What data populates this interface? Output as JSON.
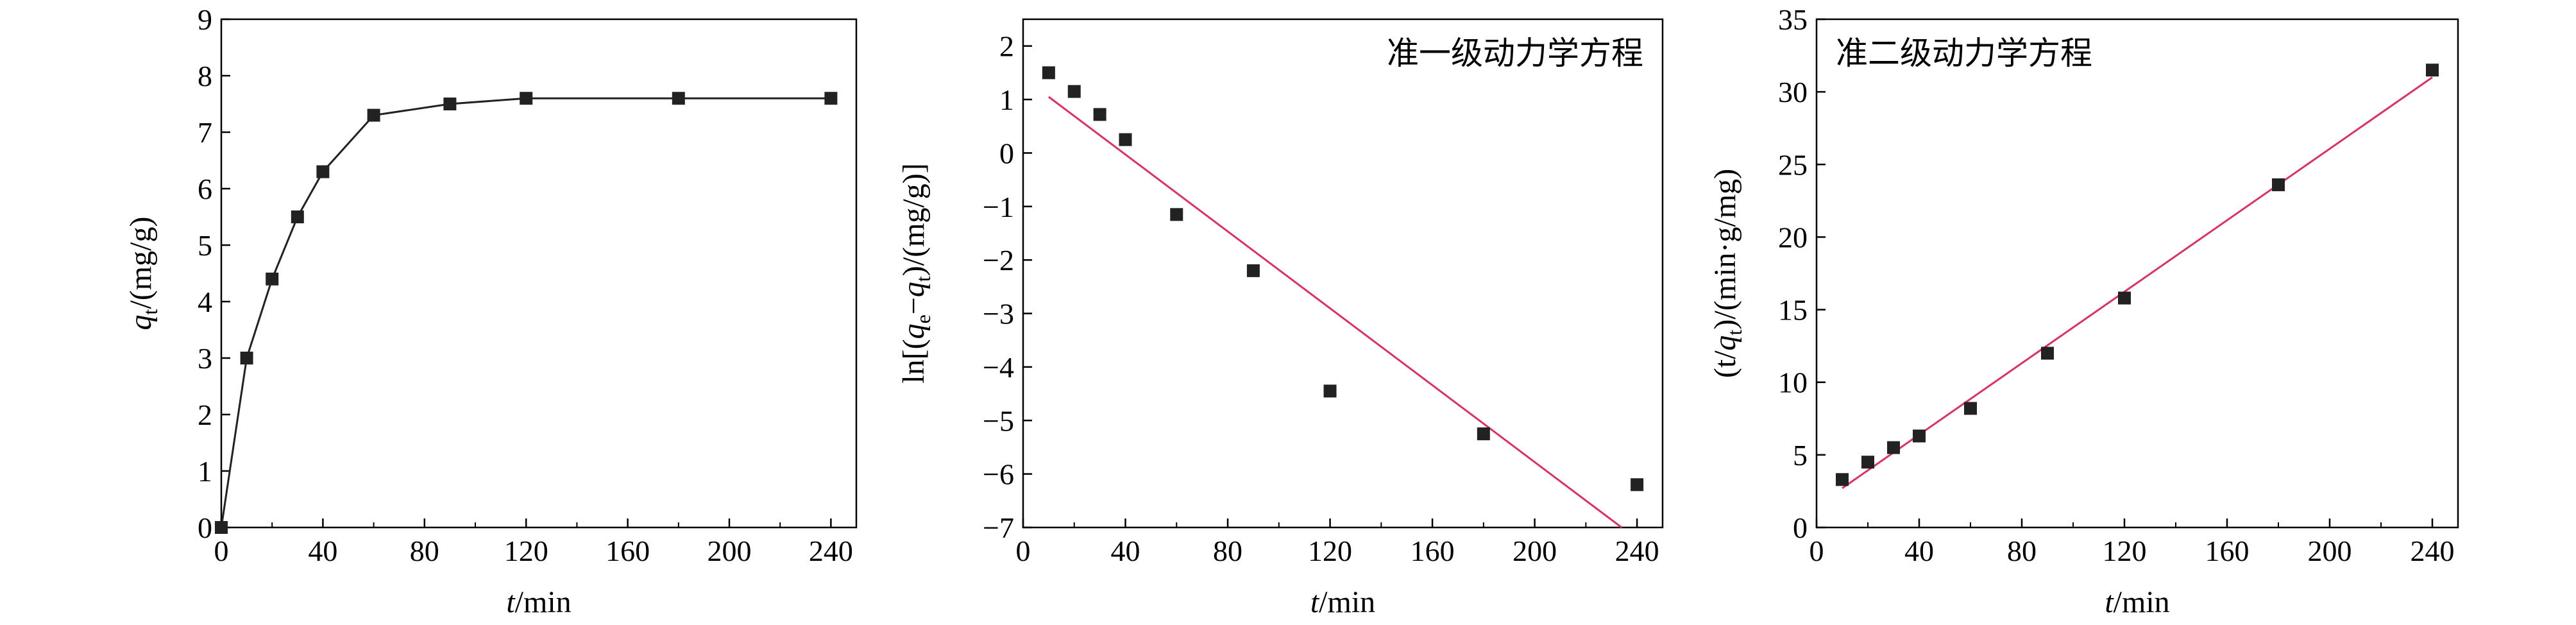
{
  "chart_data": [
    {
      "type": "line",
      "x_ticks": [
        "0",
        "40",
        "80",
        "120",
        "160",
        "200",
        "240"
      ],
      "y_ticks": [
        "0",
        "1",
        "2",
        "3",
        "4",
        "5",
        "6",
        "7",
        "8",
        "9"
      ],
      "xlim": [
        0,
        250
      ],
      "ylim": [
        0,
        9
      ],
      "xlabel_italic": "t",
      "xlabel_rest": "/min",
      "ylabel_italic": "q",
      "ylabel_sub": "t",
      "ylabel_rest": "/(mg/g)",
      "grid": false,
      "series": [
        {
          "marker": "square",
          "line": true,
          "x": [
            0,
            10,
            20,
            30,
            40,
            60,
            90,
            120,
            180,
            240
          ],
          "y": [
            0.0,
            3.0,
            4.4,
            5.5,
            6.3,
            7.3,
            7.5,
            7.6,
            7.6,
            7.6
          ]
        }
      ]
    },
    {
      "type": "scatter",
      "title": "准一级动力学方程",
      "x_ticks": [
        "0",
        "40",
        "80",
        "120",
        "160",
        "200",
        "240"
      ],
      "y_ticks": [
        "2",
        "1",
        "0",
        "−1",
        "−2",
        "−3",
        "−4",
        "−5",
        "−6",
        "−7"
      ],
      "xlim": [
        0,
        250
      ],
      "ylim": [
        -7,
        2.5
      ],
      "xlabel_italic": "t",
      "xlabel_rest": "/min",
      "ylabel_parts": [
        "ln[(",
        "q",
        "e",
        "−",
        "q",
        "t",
        ")/(mg/g)]"
      ],
      "grid": false,
      "series": [
        {
          "marker": "square",
          "x": [
            10,
            20,
            30,
            40,
            60,
            90,
            120,
            180,
            240
          ],
          "y": [
            1.5,
            1.15,
            0.72,
            0.25,
            -1.15,
            -2.2,
            -4.45,
            -5.25,
            -6.2
          ]
        }
      ],
      "fit_line": {
        "x": [
          10,
          234
        ],
        "y": [
          1.05,
          -7.0
        ],
        "color": "#d6336c"
      }
    },
    {
      "type": "scatter",
      "title": "准二级动力学方程",
      "x_ticks": [
        "0",
        "40",
        "80",
        "120",
        "160",
        "200",
        "240"
      ],
      "y_ticks": [
        "0",
        "5",
        "10",
        "15",
        "20",
        "25",
        "30",
        "35"
      ],
      "xlim": [
        0,
        250
      ],
      "ylim": [
        0,
        35
      ],
      "xlabel_italic": "t",
      "xlabel_rest": "/min",
      "ylabel_parts": [
        "(t/",
        "q",
        "t",
        ")/(min·g/mg)"
      ],
      "grid": false,
      "series": [
        {
          "marker": "square",
          "x": [
            10,
            20,
            30,
            40,
            60,
            90,
            120,
            180,
            240
          ],
          "y": [
            3.3,
            4.5,
            5.5,
            6.3,
            8.2,
            12.0,
            15.8,
            23.6,
            31.5
          ]
        }
      ],
      "fit_line": {
        "x": [
          10,
          240
        ],
        "y": [
          2.7,
          31.0
        ],
        "color": "#d6336c"
      }
    }
  ]
}
